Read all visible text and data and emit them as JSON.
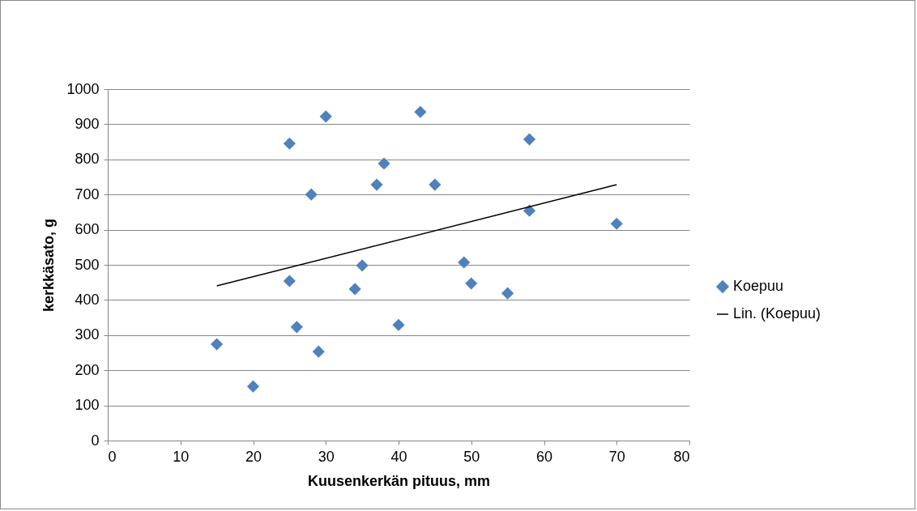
{
  "chart_data": {
    "type": "scatter",
    "xlabel": "Kuusenkerkän pituus, mm",
    "ylabel": "kerkkäsato, g",
    "xlim": [
      0,
      80
    ],
    "xticks": [
      0,
      10,
      20,
      30,
      40,
      50,
      60,
      70,
      80
    ],
    "ylim": [
      0,
      1000
    ],
    "yticks": [
      0,
      100,
      200,
      300,
      400,
      500,
      600,
      700,
      800,
      900,
      1000
    ],
    "grid": "y",
    "legend": "right",
    "series": [
      {
        "name": "Koepuu",
        "color": "#4f81bd",
        "marker": "diamond",
        "x": [
          15,
          20,
          25,
          25,
          26,
          28,
          29,
          30,
          34,
          35,
          37,
          38,
          40,
          43,
          45,
          49,
          50,
          55,
          58,
          58,
          70
        ],
        "values": [
          274,
          154,
          845,
          454,
          323,
          700,
          253,
          922,
          431,
          498,
          728,
          788,
          329,
          935,
          728,
          507,
          447,
          419,
          857,
          654,
          617
        ]
      },
      {
        "name": "Lin. (Koepuu)",
        "type": "line",
        "color": "#000000",
        "line_style": "solid",
        "x": [
          15,
          70
        ],
        "values": [
          440,
          728
        ]
      }
    ]
  }
}
